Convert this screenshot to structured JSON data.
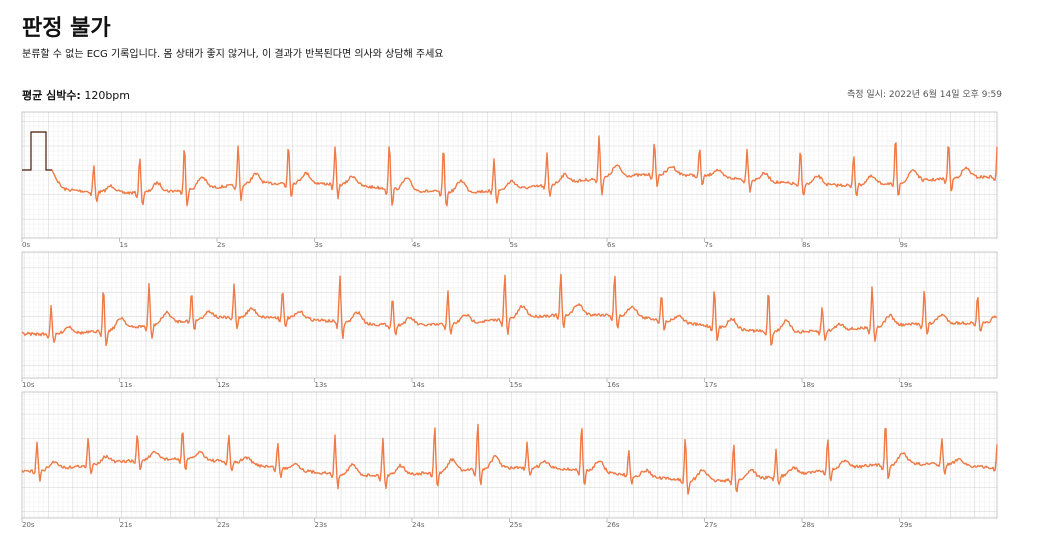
{
  "header": {
    "title": "판정 불가",
    "subtitle": "분류할 수 없는 ECG 기록입니다. 몸 상태가 좋지 않거나, 이 결과가 반복된다면 의사와 상담해 주세요"
  },
  "summary": {
    "label": "평균 심박수:",
    "value": "120bpm",
    "measured": "측정 일시: 2022년 6월 14일 오후 9:59"
  },
  "strips": [
    {
      "ticks": [
        "0s",
        "1s",
        "2s",
        "3s",
        "4s",
        "5s",
        "6s",
        "7s",
        "8s",
        "9s"
      ]
    },
    {
      "ticks": [
        "10s",
        "11s",
        "12s",
        "13s",
        "14s",
        "15s",
        "16s",
        "17s",
        "18s",
        "19s"
      ]
    },
    {
      "ticks": [
        "20s",
        "21s",
        "22s",
        "23s",
        "24s",
        "25s",
        "26s",
        "27s",
        "28s",
        "29s"
      ]
    }
  ]
}
